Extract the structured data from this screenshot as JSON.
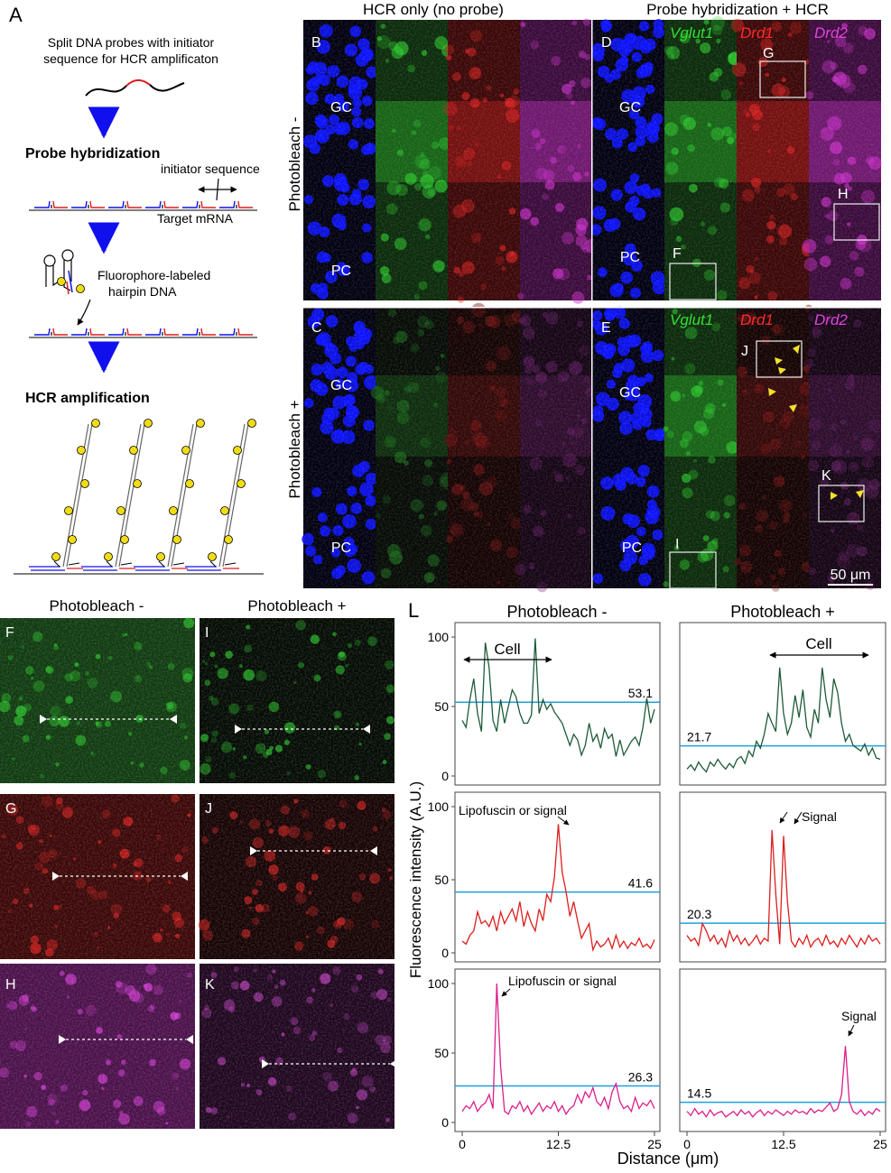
{
  "panel_letters": {
    "A": "A",
    "B": "B",
    "C": "C",
    "D": "D",
    "E": "E",
    "F": "F",
    "G": "G",
    "H": "H",
    "I": "I",
    "J": "J",
    "K": "K",
    "L": "L"
  },
  "schematic": {
    "line1": "Split DNA probes with initiator",
    "line2": "sequence for HCR amplificaton",
    "probe_hyb": "Probe hybridization",
    "initiator": "initiator sequence",
    "target": "Target mRNA",
    "fluor1": "Fluorophore-labeled",
    "fluor2": "hairpin DNA",
    "hcr_amp": "HCR amplification"
  },
  "column_titles": {
    "hcr_only": "HCR only (no probe)",
    "probe_hcr": "Probe hybridization + HCR"
  },
  "row_titles": {
    "minus": "Photobleach -",
    "plus": "Photobleach +"
  },
  "genes": {
    "vglut1": "Vglut1",
    "drd1": "Drd1",
    "drd2": "Drd2"
  },
  "layers": {
    "gc": "GC",
    "pc": "PC"
  },
  "scale_bar": "50 μm",
  "inset_titles": {
    "minus": "Photobleach -",
    "plus": "Photobleach +"
  },
  "plot_titles": {
    "minus": "Photobleach -",
    "plus": "Photobleach +"
  },
  "annotations": {
    "cell": "Cell",
    "lipo": "Lipofuscin or signal",
    "signal": "Signal"
  },
  "colors": {
    "blue": "#0000ff",
    "green": "#1e5a37",
    "red": "#dc1e1e",
    "magenta": "#dc1e8c",
    "threshold": "#1ea0dc"
  },
  "chart_data": [
    {
      "type": "line",
      "panel": "L",
      "row": "green",
      "column": "Photobleach -",
      "xlim": [
        0,
        25
      ],
      "ylim": [
        0,
        100
      ],
      "xticks": [
        "0",
        "12.5",
        "25"
      ],
      "yticks": [
        "0",
        "50",
        "100"
      ],
      "threshold": 53.1,
      "threshold_label": "53.1",
      "x": [
        0,
        0.5,
        1,
        1.5,
        2,
        2.5,
        3,
        3.5,
        4,
        4.5,
        5,
        5.5,
        6,
        6.5,
        7,
        7.5,
        8,
        8.5,
        9,
        9.5,
        10,
        10.5,
        11,
        11.5,
        12,
        12.5,
        13,
        13.5,
        14,
        14.5,
        15,
        15.5,
        16,
        16.5,
        17,
        17.5,
        18,
        18.5,
        19,
        19.5,
        20,
        20.5,
        21,
        21.5,
        22,
        22.5,
        23,
        23.5,
        24,
        24.5,
        25
      ],
      "y": [
        40,
        35,
        55,
        70,
        45,
        32,
        96,
        78,
        40,
        32,
        55,
        38,
        50,
        62,
        57,
        45,
        38,
        38,
        44,
        99,
        45,
        55,
        48,
        52,
        46,
        42,
        38,
        30,
        22,
        30,
        26,
        15,
        22,
        38,
        25,
        30,
        20,
        34,
        27,
        30,
        14,
        26,
        15,
        20,
        25,
        28,
        22,
        35,
        56,
        38,
        48
      ]
    },
    {
      "type": "line",
      "panel": "L",
      "row": "green",
      "column": "Photobleach +",
      "xlim": [
        0,
        25
      ],
      "ylim": [
        0,
        100
      ],
      "xticks": [
        "0",
        "12.5",
        "25"
      ],
      "yticks": [
        "0",
        "50",
        "100"
      ],
      "threshold": 21.7,
      "threshold_label": "21.7",
      "x": [
        0,
        0.5,
        1,
        1.5,
        2,
        2.5,
        3,
        3.5,
        4,
        4.5,
        5,
        5.5,
        6,
        6.5,
        7,
        7.5,
        8,
        8.5,
        9,
        9.5,
        10,
        10.5,
        11,
        11.5,
        12,
        12.5,
        13,
        13.5,
        14,
        14.5,
        15,
        15.5,
        16,
        16.5,
        17,
        17.5,
        18,
        18.5,
        19,
        19.5,
        20,
        20.5,
        21,
        21.5,
        22,
        22.5,
        23,
        23.5,
        24,
        24.5,
        25
      ],
      "y": [
        5,
        8,
        4,
        10,
        6,
        3,
        10,
        7,
        12,
        8,
        5,
        9,
        6,
        12,
        14,
        9,
        18,
        14,
        25,
        20,
        30,
        45,
        38,
        32,
        78,
        45,
        30,
        38,
        58,
        42,
        62,
        35,
        28,
        48,
        38,
        78,
        55,
        42,
        70,
        60,
        38,
        25,
        30,
        22,
        20,
        18,
        23,
        15,
        20,
        13,
        12
      ]
    },
    {
      "type": "line",
      "panel": "L",
      "row": "red",
      "column": "Photobleach -",
      "xlim": [
        0,
        25
      ],
      "ylim": [
        0,
        100
      ],
      "xticks": [
        "0",
        "12.5",
        "25"
      ],
      "yticks": [
        "0",
        "50",
        "100"
      ],
      "threshold": 41.6,
      "threshold_label": "41.6",
      "x": [
        0,
        0.5,
        1,
        1.5,
        2,
        2.5,
        3,
        3.5,
        4,
        4.5,
        5,
        5.5,
        6,
        6.5,
        7,
        7.5,
        8,
        8.5,
        9,
        9.5,
        10,
        10.5,
        11,
        11.5,
        12,
        12.5,
        13,
        13.5,
        14,
        14.5,
        15,
        15.5,
        16,
        16.5,
        17,
        17.5,
        18,
        18.5,
        19,
        19.5,
        20,
        20.5,
        21,
        21.5,
        22,
        22.5,
        23,
        23.5,
        24,
        24.5,
        25
      ],
      "y": [
        8,
        6,
        12,
        15,
        28,
        20,
        22,
        18,
        25,
        15,
        28,
        20,
        25,
        30,
        22,
        35,
        18,
        28,
        20,
        15,
        30,
        22,
        40,
        35,
        52,
        88,
        55,
        42,
        25,
        35,
        22,
        10,
        15,
        20,
        2,
        8,
        4,
        6,
        10,
        3,
        12,
        4,
        8,
        3,
        7,
        5,
        10,
        4,
        6,
        3,
        9
      ]
    },
    {
      "type": "line",
      "panel": "L",
      "row": "red",
      "column": "Photobleach +",
      "xlim": [
        0,
        25
      ],
      "ylim": [
        0,
        100
      ],
      "xticks": [
        "0",
        "12.5",
        "25"
      ],
      "yticks": [
        "0",
        "50",
        "100"
      ],
      "threshold": 20.3,
      "threshold_label": "20.3",
      "x": [
        0,
        0.5,
        1,
        1.5,
        2,
        2.5,
        3,
        3.5,
        4,
        4.5,
        5,
        5.5,
        6,
        6.5,
        7,
        7.5,
        8,
        8.5,
        9,
        9.5,
        10,
        10.5,
        11,
        11.5,
        12,
        12.5,
        13,
        13.5,
        14,
        14.5,
        15,
        15.5,
        16,
        16.5,
        17,
        17.5,
        18,
        18.5,
        19,
        19.5,
        20,
        20.5,
        21,
        21.5,
        22,
        22.5,
        23,
        23.5,
        24,
        24.5,
        25
      ],
      "y": [
        12,
        8,
        10,
        5,
        20,
        15,
        8,
        12,
        6,
        10,
        4,
        15,
        8,
        12,
        6,
        10,
        5,
        8,
        12,
        6,
        10,
        8,
        84,
        40,
        6,
        80,
        35,
        8,
        4,
        10,
        6,
        12,
        4,
        8,
        10,
        5,
        12,
        6,
        8,
        4,
        10,
        6,
        12,
        8,
        4,
        10,
        6,
        12,
        8,
        10,
        6
      ]
    },
    {
      "type": "line",
      "panel": "L",
      "row": "magenta",
      "column": "Photobleach -",
      "xlim": [
        0,
        25
      ],
      "ylim": [
        0,
        100
      ],
      "xticks": [
        "0",
        "12.5",
        "25"
      ],
      "yticks": [
        "0",
        "50",
        "100"
      ],
      "threshold": 26.3,
      "threshold_label": "26.3",
      "x": [
        0,
        0.5,
        1,
        1.5,
        2,
        2.5,
        3,
        3.5,
        4,
        4.5,
        5,
        5.5,
        6,
        6.5,
        7,
        7.5,
        8,
        8.5,
        9,
        9.5,
        10,
        10.5,
        11,
        11.5,
        12,
        12.5,
        13,
        13.5,
        14,
        14.5,
        15,
        15.5,
        16,
        16.5,
        17,
        17.5,
        18,
        18.5,
        19,
        19.5,
        20,
        20.5,
        21,
        21.5,
        22,
        22.5,
        23,
        23.5,
        24,
        24.5,
        25
      ],
      "y": [
        8,
        12,
        10,
        15,
        8,
        12,
        14,
        20,
        10,
        100,
        40,
        8,
        6,
        12,
        10,
        15,
        8,
        12,
        6,
        10,
        14,
        8,
        12,
        10,
        15,
        8,
        12,
        6,
        10,
        12,
        20,
        14,
        22,
        18,
        25,
        15,
        12,
        18,
        10,
        22,
        28,
        15,
        10,
        12,
        8,
        18,
        10,
        14,
        12,
        16,
        10
      ]
    },
    {
      "type": "line",
      "panel": "L",
      "row": "magenta",
      "column": "Photobleach +",
      "xlim": [
        0,
        25
      ],
      "ylim": [
        0,
        100
      ],
      "xticks": [
        "0",
        "12.5",
        "25"
      ],
      "yticks": [
        "0",
        "50",
        "100"
      ],
      "threshold": 14.5,
      "threshold_label": "14.5",
      "x": [
        0,
        0.5,
        1,
        1.5,
        2,
        2.5,
        3,
        3.5,
        4,
        4.5,
        5,
        5.5,
        6,
        6.5,
        7,
        7.5,
        8,
        8.5,
        9,
        9.5,
        10,
        10.5,
        11,
        11.5,
        12,
        12.5,
        13,
        13.5,
        14,
        14.5,
        15,
        15.5,
        16,
        16.5,
        17,
        17.5,
        18,
        18.5,
        19,
        19.5,
        20,
        20.5,
        21,
        21.5,
        22,
        22.5,
        23,
        23.5,
        24,
        24.5,
        25
      ],
      "y": [
        8,
        5,
        10,
        6,
        8,
        4,
        9,
        5,
        7,
        8,
        4,
        6,
        8,
        5,
        9,
        6,
        8,
        4,
        7,
        9,
        5,
        8,
        6,
        9,
        7,
        5,
        8,
        6,
        9,
        7,
        8,
        6,
        10,
        7,
        9,
        8,
        11,
        14,
        8,
        10,
        20,
        55,
        15,
        8,
        6,
        9,
        5,
        8,
        6,
        10,
        8
      ]
    }
  ],
  "axis_labels": {
    "y": "Fluorescence intensity (A.U.)",
    "x": "Distance (μm)"
  },
  "x_ticks": [
    "0",
    "12.5",
    "25"
  ],
  "y_ticks": [
    "0",
    "50",
    "100"
  ]
}
